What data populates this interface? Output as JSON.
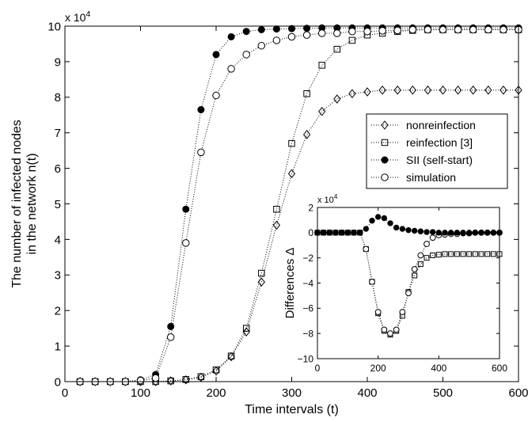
{
  "chart_data": [
    {
      "type": "scatter",
      "xlabel": "Time intervals (t)",
      "ylabel": [
        "The number of infected nodes",
        "in the network n(t)"
      ],
      "xlim": [
        0,
        600
      ],
      "ylim": [
        0,
        10
      ],
      "xticks": [
        "0",
        "100",
        "200",
        "300",
        "400",
        "500",
        "600"
      ],
      "yticks": [
        "0",
        "1",
        "2",
        "3",
        "4",
        "5",
        "6",
        "7",
        "8",
        "9",
        "10"
      ],
      "y_multiplier": "x 10",
      "y_exponent": "4",
      "legend_position": "right",
      "line_style": "dotted",
      "x": [
        20,
        40,
        60,
        80,
        100,
        120,
        140,
        160,
        180,
        200,
        220,
        240,
        260,
        280,
        300,
        320,
        340,
        360,
        380,
        400,
        420,
        440,
        460,
        480,
        500,
        520,
        540,
        560,
        580,
        600
      ],
      "series": [
        {
          "name": "nonreinfection",
          "marker": "diamond",
          "values": [
            0,
            0,
            0,
            0,
            0,
            0,
            0.02,
            0.05,
            0.12,
            0.3,
            0.7,
            1.4,
            2.8,
            4.4,
            5.85,
            6.95,
            7.6,
            7.95,
            8.1,
            8.15,
            8.2,
            8.2,
            8.2,
            8.2,
            8.2,
            8.2,
            8.2,
            8.2,
            8.2,
            8.2
          ]
        },
        {
          "name": "reinfection [3]",
          "marker": "square",
          "values": [
            0,
            0,
            0,
            0,
            0,
            0,
            0.02,
            0.06,
            0.14,
            0.33,
            0.72,
            1.5,
            3.05,
            4.85,
            6.7,
            8.1,
            8.9,
            9.35,
            9.6,
            9.75,
            9.8,
            9.85,
            9.88,
            9.9,
            9.9,
            9.9,
            9.9,
            9.9,
            9.9,
            9.9
          ]
        },
        {
          "name": "SII (self-start)",
          "marker": "filled-circle",
          "values": [
            0,
            0,
            0,
            0,
            0.05,
            0.2,
            1.55,
            4.85,
            7.65,
            9.2,
            9.7,
            9.85,
            9.9,
            9.92,
            9.93,
            9.94,
            9.95,
            9.95,
            9.95,
            9.95,
            9.95,
            9.95,
            9.95,
            9.95,
            9.95,
            9.95,
            9.95,
            9.95,
            9.95,
            9.95
          ]
        },
        {
          "name": "simulation",
          "marker": "open-circle",
          "values": [
            0,
            0,
            0,
            0,
            0.03,
            0.1,
            1.25,
            3.9,
            6.45,
            8.05,
            8.8,
            9.2,
            9.45,
            9.6,
            9.7,
            9.75,
            9.8,
            9.8,
            9.85,
            9.85,
            9.87,
            9.88,
            9.9,
            9.9,
            9.9,
            9.9,
            9.9,
            9.9,
            9.9,
            9.9
          ]
        }
      ]
    },
    {
      "type": "scatter",
      "inset": true,
      "ylabel": "Differences Δ",
      "xlim": [
        0,
        600
      ],
      "ylim": [
        -10,
        2
      ],
      "xticks": [
        "0",
        "200",
        "400",
        "600"
      ],
      "yticks": [
        "2",
        "0",
        "−2",
        "−4",
        "−6",
        "−8",
        "−10"
      ],
      "y_multiplier": "x 10",
      "y_exponent": "4",
      "line_style": "dotted",
      "x": [
        0,
        20,
        40,
        60,
        80,
        100,
        120,
        140,
        160,
        180,
        200,
        220,
        240,
        260,
        280,
        300,
        320,
        340,
        360,
        380,
        400,
        420,
        440,
        460,
        480,
        500,
        520,
        540,
        560,
        580,
        600
      ],
      "series": [
        {
          "marker": "square",
          "values": [
            0,
            0,
            0,
            0,
            0,
            0,
            0,
            0,
            -1.3,
            -3.9,
            -6.4,
            -7.8,
            -8.1,
            -7.8,
            -6.6,
            -4.7,
            -3.4,
            -2.5,
            -2.0,
            -1.8,
            -1.75,
            -1.7,
            -1.7,
            -1.7,
            -1.7,
            -1.7,
            -1.7,
            -1.7,
            -1.7,
            -1.7,
            -1.7
          ]
        },
        {
          "marker": "open-circle",
          "values": [
            0,
            0,
            0,
            0,
            0,
            0,
            0,
            0,
            -1.3,
            -3.9,
            -6.3,
            -7.7,
            -8.0,
            -7.7,
            -6.3,
            -4.8,
            -2.9,
            -1.8,
            -0.9,
            -0.4,
            -0.2,
            -0.15,
            -0.1,
            -0.1,
            -0.05,
            -0.05,
            0,
            0,
            0,
            0,
            0
          ]
        },
        {
          "marker": "filled-circle",
          "values": [
            0,
            0,
            0,
            0,
            0,
            0,
            0,
            0,
            0.3,
            0.95,
            1.25,
            1.15,
            0.75,
            0.4,
            0.3,
            0.2,
            0.15,
            0.1,
            0.05,
            0.05,
            0,
            0,
            0,
            0,
            0,
            0,
            0,
            0,
            0,
            0,
            0
          ]
        }
      ]
    }
  ]
}
